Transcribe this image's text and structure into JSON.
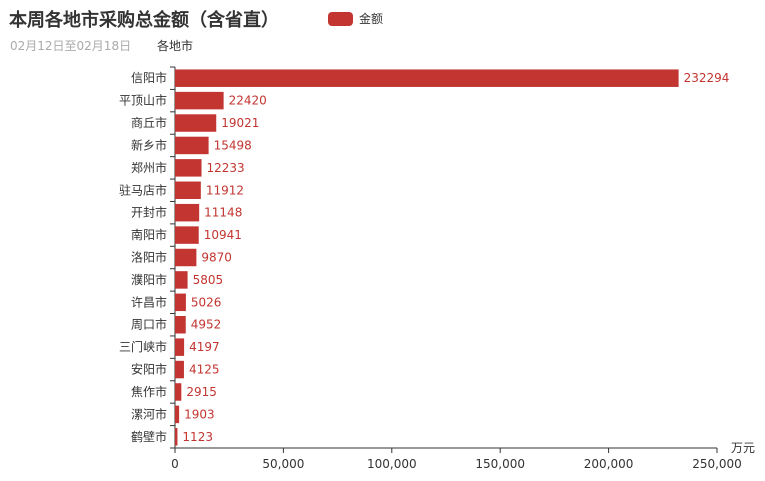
{
  "title": "本周各地市采购总金额（含省直）",
  "subtitle": "02月12日至02月18日",
  "legend": {
    "label": "金额",
    "color": "#c23531"
  },
  "chart_data": {
    "type": "bar",
    "orientation": "horizontal",
    "ylabel": "各地市",
    "xlabel": "万元",
    "xlim": [
      0,
      250000
    ],
    "xticks": [
      "0",
      "50,000",
      "100,000",
      "150,000",
      "200,000",
      "250,000"
    ],
    "categories": [
      "信阳市",
      "平顶山市",
      "商丘市",
      "新乡市",
      "郑州市",
      "驻马店市",
      "开封市",
      "南阳市",
      "洛阳市",
      "濮阳市",
      "许昌市",
      "周口市",
      "三门峡市",
      "安阳市",
      "焦作市",
      "漯河市",
      "鹤壁市"
    ],
    "series": [
      {
        "name": "金额",
        "color": "#c23531",
        "values": [
          232294,
          22420,
          19021,
          15498,
          12233,
          11912,
          11148,
          10941,
          9870,
          5805,
          5026,
          4952,
          4197,
          4125,
          2915,
          1903,
          1123
        ]
      }
    ],
    "grid": false,
    "legend_position": "top-center"
  }
}
